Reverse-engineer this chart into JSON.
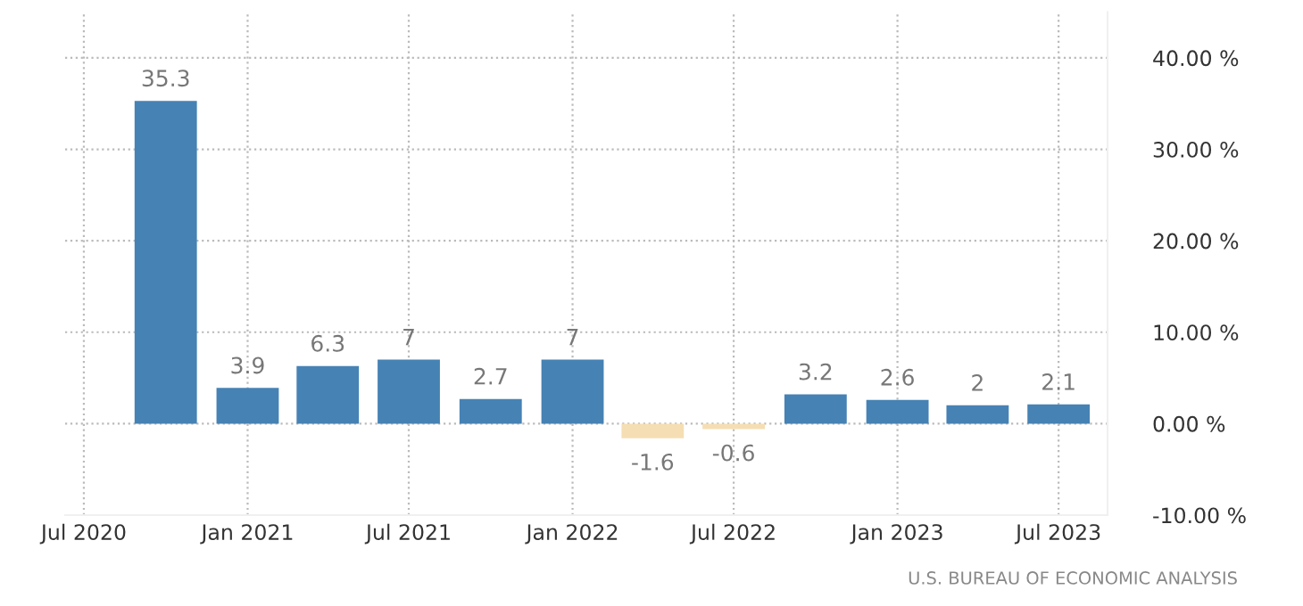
{
  "chart_data": {
    "type": "bar",
    "x": [
      "2020-10-01",
      "2021-01-01",
      "2021-04-01",
      "2021-07-01",
      "2021-10-01",
      "2022-01-01",
      "2022-04-01",
      "2022-07-01",
      "2022-10-01",
      "2023-01-01",
      "2023-04-01",
      "2023-07-01"
    ],
    "values": [
      35.3,
      3.9,
      6.3,
      7,
      2.7,
      7,
      -1.6,
      -0.6,
      3.2,
      2.6,
      2,
      2.1
    ],
    "colors": [
      "#4682b4",
      "#4682b4",
      "#4682b4",
      "#4682b4",
      "#4682b4",
      "#4682b4",
      "#f5deb3",
      "#f5deb3",
      "#4682b4",
      "#4682b4",
      "#4682b4",
      "#4682b4"
    ],
    "data_labels": true,
    "xlim": [
      "2020-06-10",
      "2023-08-25"
    ],
    "xticks": [
      {
        "value": "2020-07",
        "label": "Jul 2020"
      },
      {
        "value": "2021-01",
        "label": "Jan 2021"
      },
      {
        "value": "2021-07",
        "label": "Jul 2021"
      },
      {
        "value": "2022-01",
        "label": "Jan 2022"
      },
      {
        "value": "2022-07",
        "label": "Jul 2022"
      },
      {
        "value": "2023-01",
        "label": "Jan 2023"
      },
      {
        "value": "2023-07",
        "label": "Jul 2023"
      }
    ],
    "ylim": [
      -10,
      45
    ],
    "yticks": [
      {
        "value": -10,
        "label": "-10.00 %"
      },
      {
        "value": 0,
        "label": "0.00 %"
      },
      {
        "value": 10,
        "label": "10.00 %"
      },
      {
        "value": 20,
        "label": "20.00 %"
      },
      {
        "value": 30,
        "label": "30.00 %"
      },
      {
        "value": 40,
        "label": "40.00 %"
      }
    ],
    "grid": true,
    "annotations": [
      "U.S. BUREAU OF ECONOMIC ANALYSIS"
    ]
  }
}
